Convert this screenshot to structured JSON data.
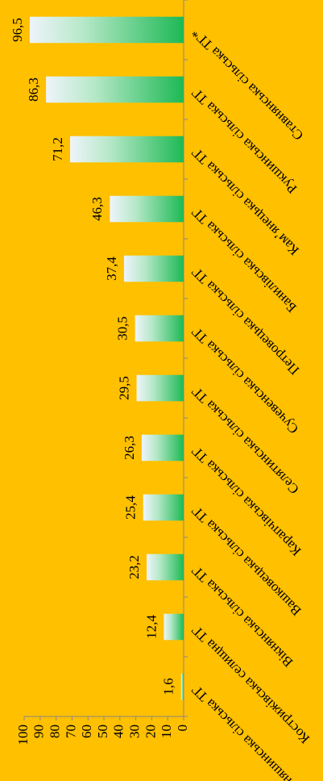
{
  "chart_data": {
    "type": "bar",
    "categories": [
      "Коняшинська сільська ТГ",
      "Кострижівська селищна ТГ",
      "Вікнянська сільська ТГ",
      "Вашковецька сільська ТГ",
      "Карапчівська сільська ТГ",
      "Селятинська сільська ТГ",
      "Сучевенська сільська ТГ",
      "Петровецька сільська ТГ",
      "Банилівська сільська ТГ",
      "Кам’янецька сільська ТГ",
      "Рукшинська сільська ТГ",
      "Ставнянська сільська ТГ*"
    ],
    "values": [
      1.6,
      12.4,
      23.2,
      25.4,
      26.3,
      29.5,
      30.5,
      37.4,
      46.3,
      71.2,
      86.3,
      96.5
    ],
    "value_labels": [
      "1,6",
      "12,4",
      "23,2",
      "25,4",
      "26,3",
      "29,5",
      "30,5",
      "37,4",
      "46,3",
      "71,2",
      "86,3",
      "96,5"
    ],
    "color": "#1db954",
    "ylim": [
      0,
      100
    ],
    "yticks": [
      0,
      10,
      20,
      30,
      40,
      50,
      60,
      70,
      80,
      90,
      100
    ],
    "grid": false
  }
}
